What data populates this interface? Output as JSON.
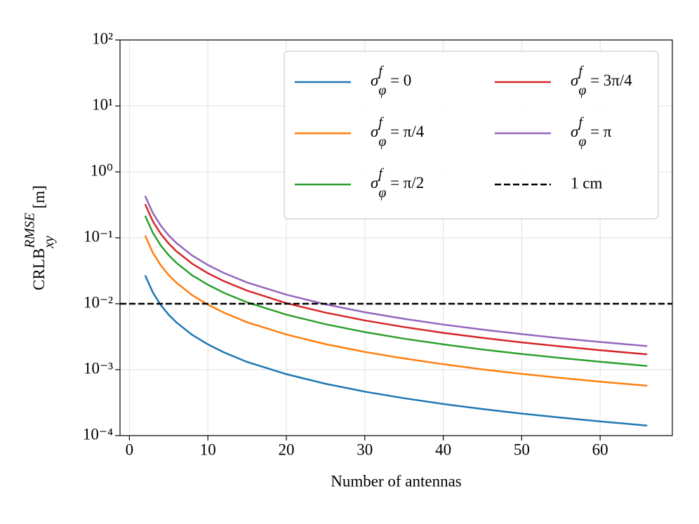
{
  "chart_data": {
    "type": "line",
    "xlabel": "Number of antennas",
    "ylabel": "CRLB_xy^RMSE [m]",
    "x": [
      2,
      3,
      4,
      5,
      6,
      8,
      10,
      12,
      15,
      20,
      25,
      30,
      35,
      40,
      45,
      50,
      55,
      60,
      66
    ],
    "series": [
      {
        "name": "σ_φ^f = 0",
        "color": "#1f77b4",
        "values": [
          0.027,
          0.0147,
          0.00955,
          0.00683,
          0.0052,
          0.00338,
          0.00242,
          0.00184,
          0.00131,
          0.000854,
          0.000611,
          0.000465,
          0.000369,
          0.000302,
          0.000253,
          0.000216,
          0.000187,
          0.000164,
          0.000142
        ]
      },
      {
        "name": "σ_φ^f = π/4",
        "color": "#ff7f0e",
        "values": [
          0.108,
          0.0588,
          0.0382,
          0.0273,
          0.0208,
          0.0135,
          0.00968,
          0.00736,
          0.00524,
          0.00342,
          0.00244,
          0.00186,
          0.00148,
          0.00121,
          0.00101,
          0.000864,
          0.000749,
          0.000658,
          0.00057
        ]
      },
      {
        "name": "σ_φ^f = π/2",
        "color": "#2ca02c",
        "values": [
          0.216,
          0.118,
          0.0764,
          0.0546,
          0.0416,
          0.027,
          0.0194,
          0.0147,
          0.0105,
          0.00683,
          0.00489,
          0.00372,
          0.00295,
          0.00242,
          0.00202,
          0.00173,
          0.0015,
          0.00132,
          0.00114
        ]
      },
      {
        "name": "σ_φ^f = 3π/4",
        "color": "#d62728",
        "values": [
          0.324,
          0.176,
          0.115,
          0.082,
          0.0624,
          0.0405,
          0.029,
          0.0221,
          0.0158,
          0.0102,
          0.00733,
          0.00558,
          0.00443,
          0.00362,
          0.00304,
          0.00259,
          0.00225,
          0.00197,
          0.00171
        ]
      },
      {
        "name": "σ_φ^f = π",
        "color": "#9467bd",
        "values": [
          0.432,
          0.235,
          0.153,
          0.109,
          0.0832,
          0.054,
          0.0387,
          0.0294,
          0.021,
          0.0137,
          0.00978,
          0.00744,
          0.0059,
          0.00483,
          0.00405,
          0.00346,
          0.003,
          0.00263,
          0.00228
        ]
      }
    ],
    "hline": {
      "name": "1 cm",
      "value": 0.01,
      "color": "#000000"
    },
    "xlim": [
      -1.2,
      69.2
    ],
    "xticks": [
      0,
      10,
      20,
      30,
      40,
      50,
      60
    ],
    "ylim": [
      0.0001,
      100
    ],
    "yscale": "log",
    "yticks": [
      {
        "value": 0.0001,
        "label": "10⁻⁴"
      },
      {
        "value": 0.001,
        "label": "10⁻³"
      },
      {
        "value": 0.01,
        "label": "10⁻²"
      },
      {
        "value": 0.1,
        "label": "10⁻¹"
      },
      {
        "value": 1,
        "label": "10⁰"
      },
      {
        "value": 10,
        "label": "10¹"
      },
      {
        "value": 100,
        "label": "10²"
      }
    ],
    "grid": true,
    "legend": "upper right"
  }
}
